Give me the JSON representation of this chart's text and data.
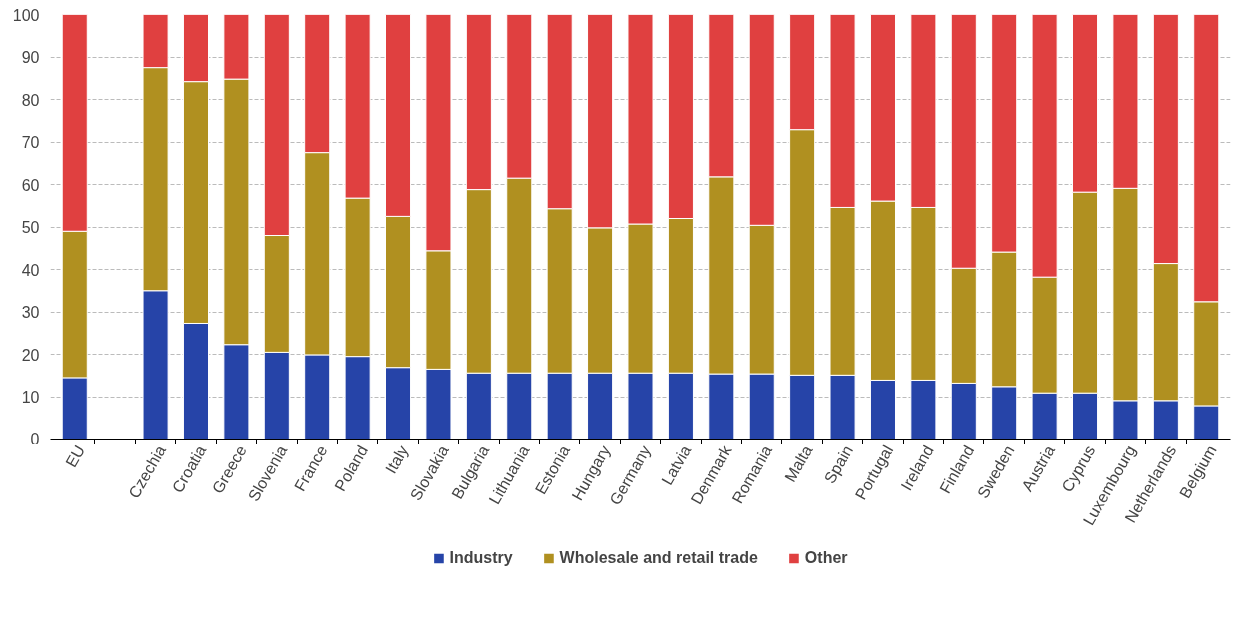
{
  "chart_data": {
    "type": "bar",
    "stacked": true,
    "categories": [
      "EU",
      null,
      "Czechia",
      "Croatia",
      "Greece",
      "Slovenia",
      "France",
      "Poland",
      "Italy",
      "Slovakia",
      "Bulgaria",
      "Lithuania",
      "Estonia",
      "Hungary",
      "Germany",
      "Latvia",
      "Denmark",
      "Romania",
      "Malta",
      "Spain",
      "Portugal",
      "Ireland",
      "Finland",
      "Sweden",
      "Austria",
      "Cyprus",
      "Luxembourg",
      "Netherlands",
      "Belgium"
    ],
    "series": [
      {
        "name": "Industry",
        "color": "#2644a8",
        "values": [
          14.5,
          null,
          35,
          27.3,
          22.3,
          20.5,
          19.9,
          19.5,
          16.9,
          16.5,
          15.6,
          15.6,
          15.6,
          15.6,
          15.6,
          15.6,
          15.4,
          15.4,
          15.1,
          15.1,
          13.9,
          13.9,
          13.2,
          12.4,
          10.9,
          10.9,
          9.1,
          9.1,
          7.9
        ]
      },
      {
        "name": "Wholesale and retail trade",
        "color": "#b09020",
        "values": [
          34.5,
          null,
          52.5,
          56.9,
          62.5,
          27.5,
          47.6,
          37.3,
          35.6,
          27.9,
          43.2,
          45.9,
          38.7,
          34.2,
          35.1,
          36.4,
          46.4,
          35,
          57.8,
          39.5,
          42.2,
          40.7,
          27.1,
          31.7,
          27.3,
          47.3,
          50,
          32.3,
          24.5
        ]
      },
      {
        "name": "Other",
        "color": "#e04040",
        "values": [
          51,
          null,
          12.5,
          15.8,
          15.2,
          52,
          32.5,
          43.2,
          47.5,
          55.6,
          41.2,
          38.5,
          45.7,
          50.2,
          49.3,
          48,
          38.2,
          49.6,
          27.1,
          45.4,
          43.9,
          45.4,
          59.7,
          55.9,
          61.8,
          41.8,
          40.9,
          58.6,
          67.6
        ]
      }
    ],
    "ylim": [
      0,
      100
    ],
    "yticks": [
      0,
      10,
      20,
      30,
      40,
      50,
      60,
      70,
      80,
      90,
      100
    ],
    "grid": "y",
    "legend": "bottom"
  }
}
